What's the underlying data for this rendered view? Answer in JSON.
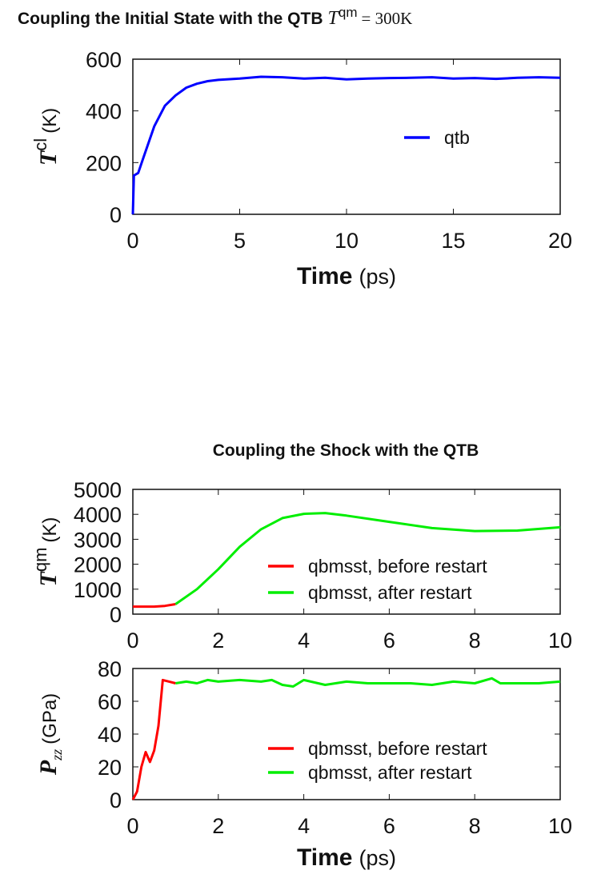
{
  "chart_data": [
    {
      "type": "line",
      "title": "Coupling the Initial State with the QTB",
      "title_math": {
        "symbol": "T",
        "superscript": "qm",
        "rest": "= 300K"
      },
      "xlabel": {
        "bold": "Time",
        "unit": "(ps)"
      },
      "ylabel": {
        "symbol": "T",
        "superscript": "cl",
        "unit": "(K)"
      },
      "xlim": [
        0,
        20
      ],
      "ylim": [
        0,
        600
      ],
      "xticks": [
        "0",
        "5",
        "10",
        "15",
        "20"
      ],
      "yticks": [
        "0",
        "200",
        "400",
        "600"
      ],
      "legend": "right",
      "series": [
        {
          "name": "qtb",
          "color": "#0000ff",
          "x": [
            0,
            0.05,
            0.25,
            0.5,
            0.75,
            1,
            1.5,
            2,
            2.5,
            3,
            3.5,
            4,
            5,
            6,
            7,
            8,
            9,
            10,
            11,
            12,
            13,
            14,
            15,
            16,
            17,
            18,
            19,
            20
          ],
          "y": [
            0,
            150,
            160,
            220,
            280,
            340,
            420,
            460,
            490,
            505,
            515,
            520,
            525,
            532,
            530,
            525,
            528,
            522,
            525,
            527,
            528,
            530,
            525,
            527,
            524,
            528,
            530,
            528
          ]
        }
      ]
    },
    {
      "type": "line",
      "title": "Coupling the Shock with the QTB",
      "ylabel": {
        "symbol": "T",
        "superscript": "qm",
        "unit": "(K)"
      },
      "xlim": [
        0,
        10
      ],
      "ylim": [
        0,
        5000
      ],
      "xticks": [
        "0",
        "2",
        "4",
        "6",
        "8",
        "10"
      ],
      "yticks": [
        "0",
        "1000",
        "2000",
        "3000",
        "4000",
        "5000"
      ],
      "legend": "bottom-right",
      "series": [
        {
          "name": "qbmsst, before restart",
          "color": "#ff0000",
          "x": [
            0,
            0.5,
            0.75,
            1
          ],
          "y": [
            300,
            300,
            330,
            400
          ]
        },
        {
          "name": "qbmsst, after restart",
          "color": "#00ee00",
          "x": [
            1,
            1.5,
            2,
            2.5,
            3,
            3.5,
            4,
            4.5,
            5,
            6,
            7,
            8,
            9,
            10
          ],
          "y": [
            400,
            1000,
            1800,
            2700,
            3400,
            3850,
            4020,
            4050,
            3950,
            3700,
            3450,
            3330,
            3350,
            3480
          ]
        }
      ]
    },
    {
      "type": "line",
      "xlabel": {
        "bold": "Time",
        "unit": "(ps)"
      },
      "ylabel": {
        "symbol": "P",
        "subscript": "zz",
        "unit": "(GPa)"
      },
      "xlim": [
        0,
        10
      ],
      "ylim": [
        0,
        80
      ],
      "xticks": [
        "0",
        "2",
        "4",
        "6",
        "8",
        "10"
      ],
      "yticks": [
        "0",
        "20",
        "40",
        "60",
        "80"
      ],
      "legend": "bottom-right",
      "series": [
        {
          "name": "qbmsst, before restart",
          "color": "#ff0000",
          "x": [
            0,
            0.1,
            0.2,
            0.3,
            0.4,
            0.5,
            0.6,
            0.7,
            0.85,
            1
          ],
          "y": [
            0,
            5,
            20,
            29,
            23,
            30,
            45,
            73,
            72,
            71
          ]
        },
        {
          "name": "qbmsst, after restart",
          "color": "#00ee00",
          "x": [
            1,
            1.25,
            1.5,
            1.75,
            2,
            2.5,
            3,
            3.25,
            3.5,
            3.75,
            4,
            4.5,
            5,
            5.5,
            6,
            6.5,
            7,
            7.5,
            8,
            8.4,
            8.6,
            9,
            9.5,
            10
          ],
          "y": [
            71,
            72,
            71,
            73,
            72,
            73,
            72,
            73,
            70,
            69,
            73,
            70,
            72,
            71,
            71,
            71,
            70,
            72,
            71,
            74,
            71,
            71,
            71,
            72
          ]
        }
      ]
    }
  ]
}
